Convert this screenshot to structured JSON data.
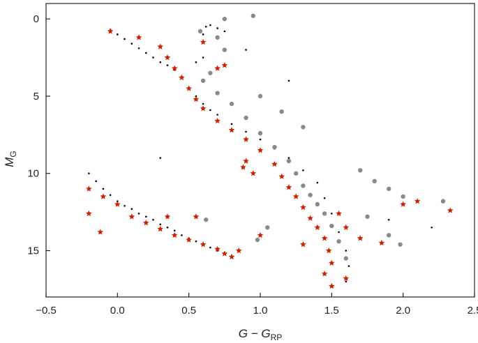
{
  "chart_data": {
    "type": "scatter",
    "title": "",
    "xlabel": {
      "main": "G − G",
      "sub": "RP"
    },
    "ylabel": {
      "main": "M",
      "sub": "G"
    },
    "xlim": [
      -0.5,
      2.5
    ],
    "ylim": [
      18,
      -1
    ],
    "y_inverted": true,
    "grid": false,
    "legend": "none",
    "xticks": [
      -0.5,
      0.0,
      0.5,
      1.0,
      1.5,
      2.0,
      2.5
    ],
    "xtick_labels": [
      "−0.5",
      "0.0",
      "0.5",
      "1.0",
      "1.5",
      "2.0",
      "2.5"
    ],
    "yticks": [
      0,
      5,
      10,
      15
    ],
    "ytick_labels": [
      "0",
      "5",
      "10",
      "15"
    ],
    "series": [
      {
        "marker": "dot",
        "color": "#000000",
        "points": [
          [
            -0.2,
            10.0
          ],
          [
            -0.15,
            10.5
          ],
          [
            -0.1,
            11.0
          ],
          [
            -0.05,
            11.4
          ],
          [
            0.0,
            11.8
          ],
          [
            0.05,
            12.1
          ],
          [
            0.1,
            12.3
          ],
          [
            0.15,
            12.6
          ],
          [
            0.2,
            12.8
          ],
          [
            0.25,
            13.0
          ],
          [
            0.3,
            13.3
          ],
          [
            0.35,
            13.5
          ],
          [
            0.4,
            13.7
          ],
          [
            0.45,
            14.0
          ],
          [
            0.5,
            14.2
          ],
          [
            0.55,
            14.4
          ],
          [
            0.6,
            14.6
          ],
          [
            0.65,
            14.8
          ],
          [
            0.7,
            15.0
          ],
          [
            -0.05,
            0.7
          ],
          [
            0.0,
            1.0
          ],
          [
            0.05,
            1.3
          ],
          [
            0.1,
            1.6
          ],
          [
            0.15,
            1.9
          ],
          [
            0.2,
            2.2
          ],
          [
            0.25,
            2.5
          ],
          [
            0.3,
            2.8
          ],
          [
            0.35,
            3.0
          ],
          [
            0.4,
            3.3
          ],
          [
            0.45,
            3.8
          ],
          [
            0.5,
            4.5
          ],
          [
            0.55,
            5.0
          ],
          [
            0.6,
            5.5
          ],
          [
            0.65,
            5.9
          ],
          [
            0.7,
            6.2
          ],
          [
            0.8,
            6.8
          ],
          [
            0.9,
            7.3
          ],
          [
            1.0,
            7.8
          ],
          [
            1.1,
            8.4
          ],
          [
            1.2,
            9.0
          ],
          [
            1.3,
            9.8
          ],
          [
            1.4,
            10.6
          ],
          [
            1.45,
            11.6
          ],
          [
            1.5,
            12.6
          ],
          [
            1.55,
            13.8
          ],
          [
            1.6,
            15.0
          ],
          [
            1.62,
            16.0
          ],
          [
            1.6,
            17.0
          ],
          [
            0.6,
            1.0
          ],
          [
            0.62,
            0.5
          ],
          [
            0.65,
            0.4
          ],
          [
            0.7,
            0.6
          ],
          [
            0.75,
            0.8
          ],
          [
            0.6,
            2.5
          ],
          [
            0.55,
            2.8
          ],
          [
            1.2,
            4.0
          ],
          [
            1.8,
            10.5
          ],
          [
            2.0,
            12.0
          ],
          [
            1.9,
            13.0
          ],
          [
            0.9,
            2.0
          ],
          [
            0.3,
            9.0
          ],
          [
            2.2,
            13.5
          ]
        ]
      },
      {
        "marker": "circle",
        "color": "#8a8a8a",
        "points": [
          [
            0.6,
            4.0
          ],
          [
            0.7,
            4.8
          ],
          [
            0.8,
            5.5
          ],
          [
            0.9,
            6.4
          ],
          [
            1.0,
            7.4
          ],
          [
            1.1,
            8.3
          ],
          [
            1.2,
            9.2
          ],
          [
            1.25,
            10.0
          ],
          [
            1.3,
            10.8
          ],
          [
            1.35,
            11.4
          ],
          [
            1.4,
            12.0
          ],
          [
            1.45,
            12.6
          ],
          [
            1.5,
            13.4
          ],
          [
            1.55,
            14.4
          ],
          [
            1.6,
            15.5
          ],
          [
            0.7,
            1.2
          ],
          [
            0.75,
            2.0
          ],
          [
            0.65,
            3.5
          ],
          [
            1.0,
            5.0
          ],
          [
            1.15,
            6.0
          ],
          [
            1.3,
            7.0
          ],
          [
            1.7,
            9.8
          ],
          [
            1.8,
            10.5
          ],
          [
            1.9,
            11.0
          ],
          [
            2.0,
            11.5
          ],
          [
            1.75,
            12.8
          ],
          [
            1.9,
            14.0
          ],
          [
            1.98,
            14.6
          ],
          [
            2.28,
            11.8
          ],
          [
            0.98,
            14.3
          ],
          [
            0.62,
            13.0
          ],
          [
            0.75,
            0.0
          ],
          [
            0.95,
            -0.2
          ],
          [
            0.58,
            0.8
          ],
          [
            1.05,
            13.5
          ]
        ]
      },
      {
        "marker": "star",
        "color": "#cc2200",
        "points": [
          [
            -0.05,
            0.8
          ],
          [
            0.15,
            1.2
          ],
          [
            0.3,
            1.8
          ],
          [
            0.35,
            2.5
          ],
          [
            0.4,
            3.2
          ],
          [
            0.45,
            3.8
          ],
          [
            0.5,
            4.5
          ],
          [
            0.55,
            5.2
          ],
          [
            0.6,
            5.8
          ],
          [
            0.7,
            6.6
          ],
          [
            0.8,
            7.2
          ],
          [
            0.9,
            7.8
          ],
          [
            1.0,
            8.5
          ],
          [
            1.1,
            9.4
          ],
          [
            1.15,
            10.2
          ],
          [
            1.2,
            10.9
          ],
          [
            1.25,
            11.5
          ],
          [
            1.3,
            12.2
          ],
          [
            1.35,
            12.9
          ],
          [
            1.4,
            13.5
          ],
          [
            1.45,
            14.2
          ],
          [
            1.48,
            15.0
          ],
          [
            1.5,
            15.8
          ],
          [
            1.45,
            16.5
          ],
          [
            1.5,
            17.3
          ],
          [
            1.6,
            16.8
          ],
          [
            -0.2,
            11.0
          ],
          [
            -0.1,
            11.5
          ],
          [
            -0.2,
            12.6
          ],
          [
            0.0,
            12.0
          ],
          [
            0.1,
            12.8
          ],
          [
            0.2,
            13.2
          ],
          [
            0.3,
            13.6
          ],
          [
            0.4,
            14.0
          ],
          [
            0.5,
            14.3
          ],
          [
            0.6,
            14.6
          ],
          [
            0.7,
            14.9
          ],
          [
            0.75,
            15.2
          ],
          [
            0.8,
            15.4
          ],
          [
            0.85,
            15.0
          ],
          [
            -0.12,
            13.8
          ],
          [
            0.35,
            12.8
          ],
          [
            0.6,
            1.5
          ],
          [
            0.7,
            3.2
          ],
          [
            0.75,
            3.0
          ],
          [
            0.9,
            9.2
          ],
          [
            0.95,
            10.0
          ],
          [
            1.0,
            14.0
          ],
          [
            1.3,
            14.6
          ],
          [
            1.6,
            13.5
          ],
          [
            1.7,
            14.2
          ],
          [
            1.85,
            14.5
          ],
          [
            2.1,
            11.8
          ],
          [
            2.33,
            12.4
          ],
          [
            2.0,
            12.0
          ],
          [
            1.55,
            12.6
          ],
          [
            0.88,
            9.6
          ],
          [
            0.55,
            12.8
          ]
        ]
      }
    ]
  }
}
